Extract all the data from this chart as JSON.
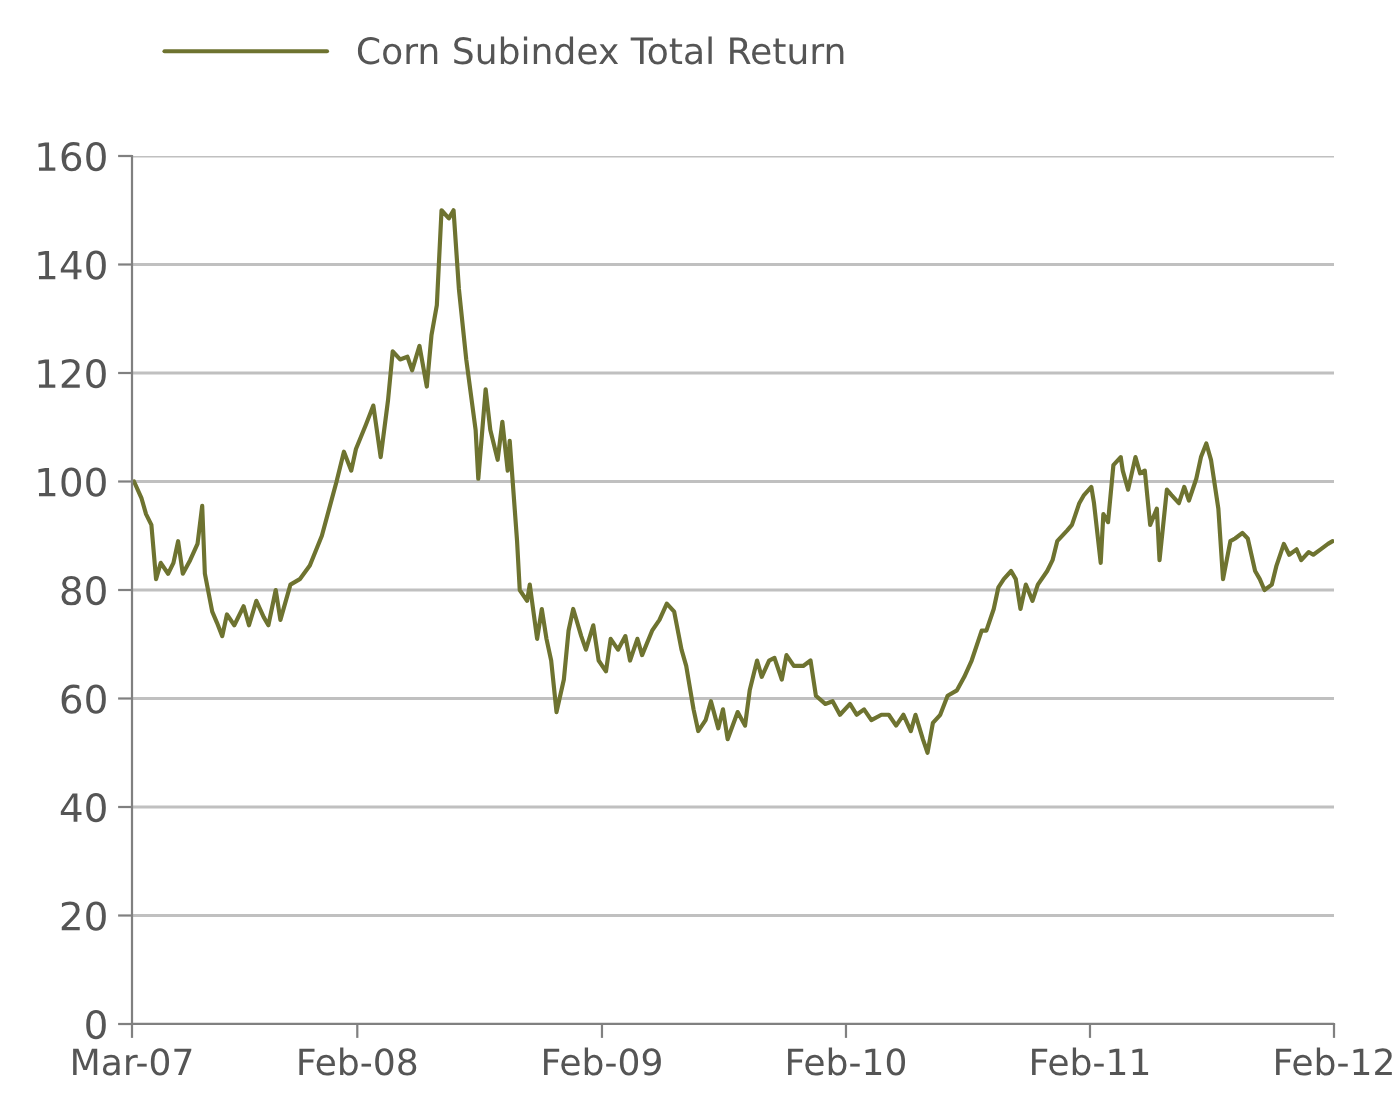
{
  "chart_data": {
    "type": "line",
    "x": [
      "2007-03-04",
      "2007-03-15",
      "2007-03-22",
      "2007-03-30",
      "2007-04-06",
      "2007-04-13",
      "2007-04-24",
      "2007-05-02",
      "2007-05-09",
      "2007-05-16",
      "2007-05-27",
      "2007-06-07",
      "2007-06-14",
      "2007-06-18",
      "2007-06-29",
      "2007-07-06",
      "2007-07-14",
      "2007-07-21",
      "2007-08-01",
      "2007-08-15",
      "2007-08-23",
      "2007-09-03",
      "2007-09-14",
      "2007-09-21",
      "2007-10-02",
      "2007-10-09",
      "2007-10-24",
      "2007-11-07",
      "2007-11-22",
      "2007-12-10",
      "2007-12-21",
      "2008-01-01",
      "2008-01-12",
      "2008-01-23",
      "2008-01-30",
      "2008-02-14",
      "2008-02-25",
      "2008-03-07",
      "2008-03-18",
      "2008-03-25",
      "2008-04-05",
      "2008-04-16",
      "2008-04-23",
      "2008-05-04",
      "2008-05-15",
      "2008-05-22",
      "2008-05-30",
      "2008-06-06",
      "2008-06-17",
      "2008-06-24",
      "2008-07-02",
      "2008-07-13",
      "2008-07-27",
      "2008-07-31",
      "2008-08-11",
      "2008-08-18",
      "2008-08-29",
      "2008-09-05",
      "2008-09-13",
      "2008-09-16",
      "2008-09-27",
      "2008-10-01",
      "2008-10-12",
      "2008-10-16",
      "2008-10-27",
      "2008-11-03",
      "2008-11-10",
      "2008-11-17",
      "2008-11-25",
      "2008-12-06",
      "2008-12-13",
      "2008-12-20",
      "2009-01-01",
      "2009-01-08",
      "2009-01-19",
      "2009-01-27",
      "2009-02-07",
      "2009-02-14",
      "2009-02-25",
      "2009-03-08",
      "2009-03-15",
      "2009-03-26",
      "2009-04-02",
      "2009-04-17",
      "2009-04-28",
      "2009-05-09",
      "2009-05-20",
      "2009-05-31",
      "2009-06-07",
      "2009-06-18",
      "2009-06-25",
      "2009-07-06",
      "2009-07-14",
      "2009-07-25",
      "2009-08-01",
      "2009-08-08",
      "2009-08-23",
      "2009-09-03",
      "2009-09-10",
      "2009-09-21",
      "2009-09-28",
      "2009-10-09",
      "2009-10-17",
      "2009-10-28",
      "2009-11-04",
      "2009-11-15",
      "2009-11-29",
      "2009-12-10",
      "2009-12-18",
      "2010-01-01",
      "2010-01-12",
      "2010-01-23",
      "2010-02-07",
      "2010-02-17",
      "2010-02-28",
      "2010-03-11",
      "2010-03-26",
      "2010-04-06",
      "2010-04-17",
      "2010-04-28",
      "2010-05-09",
      "2010-05-16",
      "2010-05-27",
      "2010-06-03",
      "2010-06-11",
      "2010-06-22",
      "2010-07-03",
      "2010-07-17",
      "2010-07-28",
      "2010-08-08",
      "2010-08-23",
      "2010-08-30",
      "2010-09-10",
      "2010-09-17",
      "2010-09-25",
      "2010-10-06",
      "2010-10-13",
      "2010-10-20",
      "2010-10-28",
      "2010-11-07",
      "2010-11-15",
      "2010-11-29",
      "2010-12-07",
      "2010-12-14",
      "2010-12-29",
      "2011-01-05",
      "2011-01-16",
      "2011-01-23",
      "2011-02-03",
      "2011-02-07",
      "2011-02-17",
      "2011-02-21",
      "2011-02-28",
      "2011-03-08",
      "2011-03-19",
      "2011-03-22",
      "2011-03-30",
      "2011-04-10",
      "2011-04-17",
      "2011-04-24",
      "2011-05-02",
      "2011-05-12",
      "2011-05-16",
      "2011-05-27",
      "2011-06-03",
      "2011-06-14",
      "2011-06-22",
      "2011-06-29",
      "2011-07-10",
      "2011-07-17",
      "2011-07-25",
      "2011-08-01",
      "2011-08-12",
      "2011-08-19",
      "2011-08-30",
      "2011-09-06",
      "2011-09-17",
      "2011-09-25",
      "2011-10-06",
      "2011-10-13",
      "2011-10-20",
      "2011-10-31",
      "2011-11-07",
      "2011-11-18",
      "2011-11-26",
      "2011-12-07",
      "2011-12-14",
      "2011-12-25",
      "2012-01-01",
      "2012-01-12",
      "2012-01-23",
      "2012-01-30"
    ],
    "series": [
      {
        "name": "Corn Subindex Total Return",
        "color": "#6e7330",
        "values": [
          100,
          97,
          94,
          92,
          82,
          85,
          83,
          85,
          89,
          83,
          85.5,
          88.5,
          95.5,
          83,
          76,
          74,
          71.5,
          75.5,
          73.5,
          77,
          73.5,
          78,
          75,
          73.5,
          80,
          74.5,
          81,
          82,
          84.5,
          90,
          95,
          100,
          105.5,
          102,
          106,
          110.5,
          114,
          104.5,
          115,
          124,
          122.5,
          123,
          120.5,
          125,
          117.5,
          127,
          132.5,
          150,
          148.5,
          150,
          135.5,
          122.5,
          109.5,
          100.5,
          117,
          109.5,
          104,
          111,
          102,
          107.5,
          89,
          80,
          78,
          81,
          71,
          76.5,
          71,
          67,
          57.5,
          63.5,
          72.5,
          76.5,
          71.5,
          69,
          73.5,
          67,
          65,
          71,
          69,
          71.5,
          67,
          71,
          68,
          72.5,
          74.5,
          77.5,
          76,
          69,
          66,
          58,
          54,
          56,
          59.5,
          54.5,
          58,
          52.5,
          57.5,
          55,
          61.5,
          67,
          64,
          67,
          67.5,
          63.5,
          68,
          66,
          66,
          67,
          60.5,
          59,
          59.5,
          57,
          59,
          57,
          58,
          56,
          57,
          57,
          55,
          57,
          54,
          57,
          52.5,
          50,
          55.5,
          57,
          60.5,
          61.5,
          64,
          67,
          72.5,
          72.5,
          76.5,
          80.5,
          82,
          83.5,
          82,
          76.5,
          81,
          78,
          81,
          83.5,
          85.5,
          89,
          91,
          92,
          96,
          97.5,
          99,
          96,
          85,
          94,
          92.5,
          103,
          104.5,
          102,
          98.5,
          104.5,
          101.5,
          102,
          92,
          95,
          85.5,
          98.5,
          97.5,
          96,
          99,
          96.5,
          100.5,
          104.5,
          107,
          104,
          95,
          82,
          89,
          89.5,
          90.5,
          89.5,
          83.5,
          82,
          80,
          81,
          84.5,
          88.5,
          86.5,
          87.5,
          85.5,
          87,
          86.5,
          87.5,
          88.5,
          89
        ]
      }
    ],
    "xlim": [
      "2007-03-01",
      "2012-02-01"
    ],
    "xticks": [
      {
        "value": "2007-03-01",
        "label": "Mar-07"
      },
      {
        "value": "2008-02-01",
        "label": "Feb-08"
      },
      {
        "value": "2009-02-01",
        "label": "Feb-09"
      },
      {
        "value": "2010-02-01",
        "label": "Feb-10"
      },
      {
        "value": "2011-02-01",
        "label": "Feb-11"
      },
      {
        "value": "2012-02-01",
        "label": "Feb-12"
      }
    ],
    "ylim": [
      0,
      160
    ],
    "yticks": [
      0,
      20,
      40,
      60,
      80,
      100,
      120,
      140,
      160
    ],
    "grid": "y",
    "legend": "top left",
    "line_style": "solid",
    "marker": "none"
  }
}
